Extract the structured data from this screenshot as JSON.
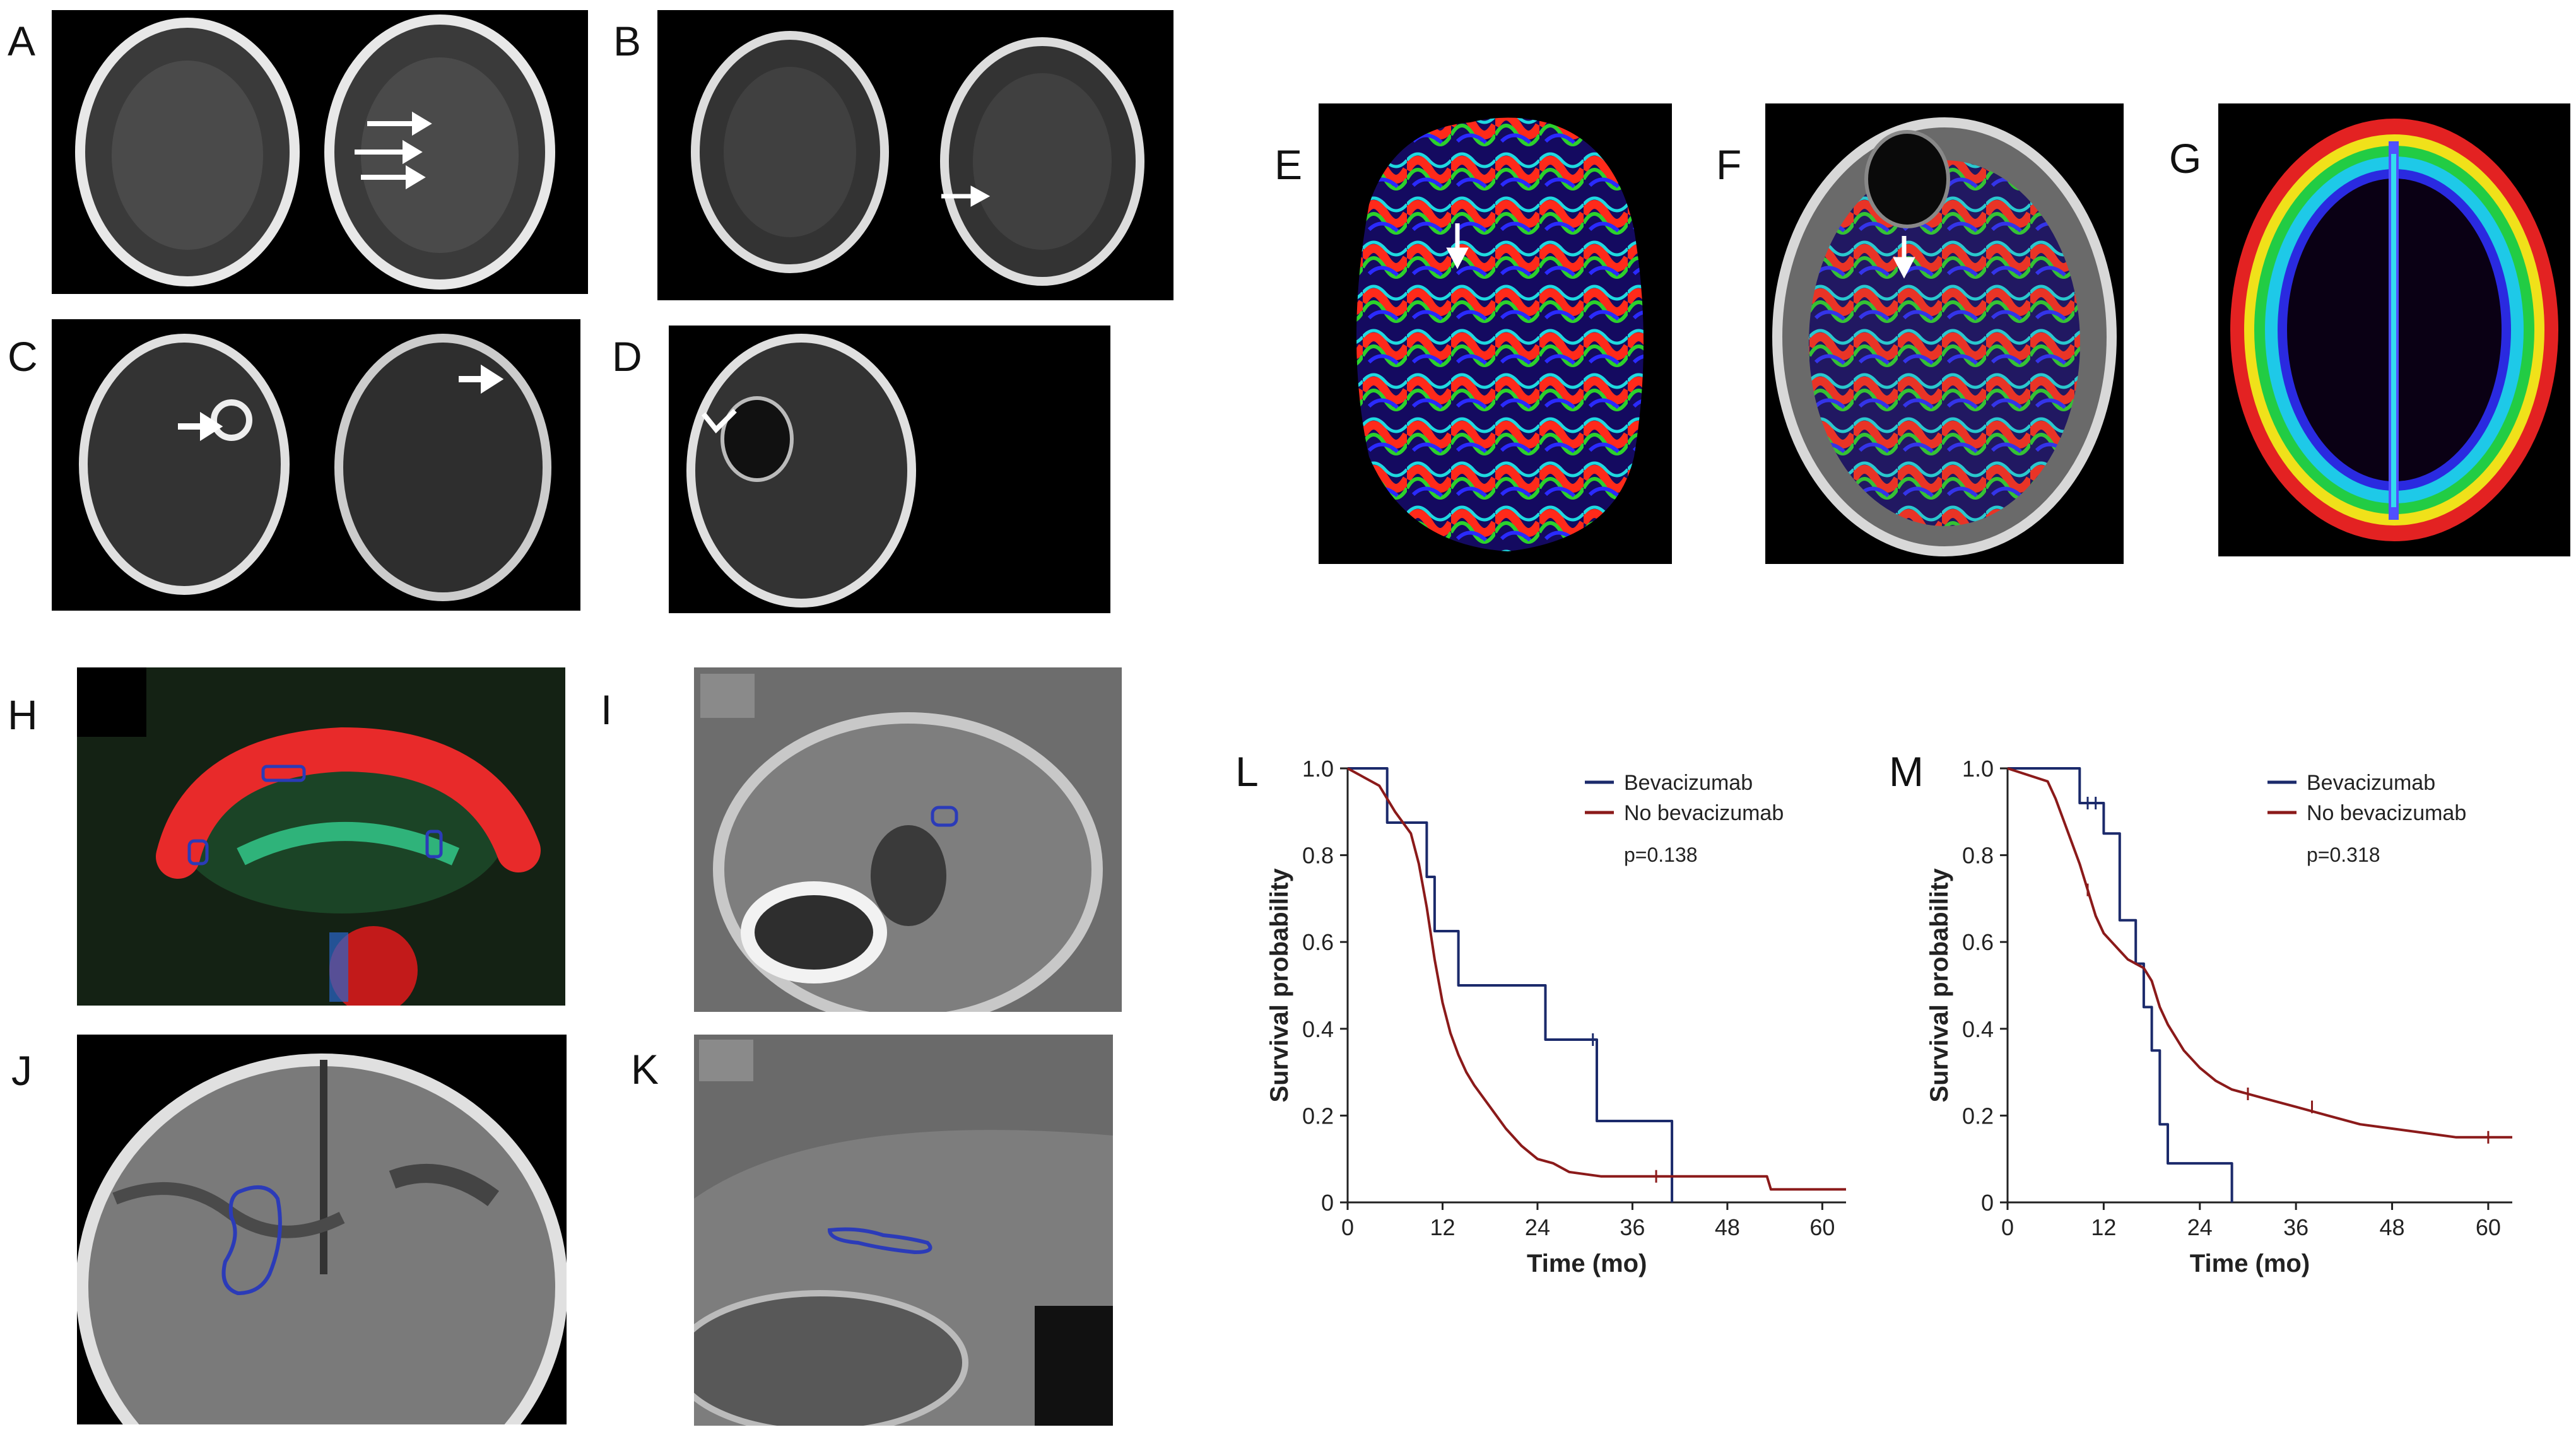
{
  "panel_labels": {
    "A": "A",
    "B": "B",
    "C": "C",
    "D": "D",
    "E": "E",
    "F": "F",
    "G": "G",
    "H": "H",
    "I": "I",
    "J": "J",
    "K": "K",
    "L": "L",
    "M": "M"
  },
  "colors": {
    "bevacizumab": "#1b2a6b",
    "no_bevacizumab": "#8b1a1a",
    "arrow": "#ffffff",
    "roi": "#2b3bb8"
  },
  "icons": [
    "arrow-icon",
    "roi-outline-icon",
    "censor-tick-icon"
  ],
  "chart_data": [
    {
      "id": "L",
      "type": "line",
      "xlabel": "Time (mo)",
      "ylabel": "Survival probability",
      "xlim": [
        0,
        63
      ],
      "ylim": [
        0,
        1.0
      ],
      "xticks": [
        0,
        12,
        24,
        36,
        48,
        60
      ],
      "yticks": [
        0,
        0.2,
        0.4,
        0.6,
        0.8,
        1.0
      ],
      "ytick_labels": [
        "0",
        "0.2",
        "0.4",
        "0.6",
        "0.8",
        "1.0"
      ],
      "legend_position": "top-right",
      "annotation": "p=0.138",
      "series": [
        {
          "name": "Bevacizumab",
          "color": "#1b2a6b",
          "step": true,
          "x": [
            0,
            5,
            5,
            10,
            10,
            11,
            11,
            14,
            14,
            25,
            25,
            31.5,
            31.5,
            41,
            41
          ],
          "y": [
            1,
            1,
            0.875,
            0.875,
            0.75,
            0.75,
            0.625,
            0.625,
            0.5,
            0.5,
            0.375,
            0.375,
            0.1875,
            0.1875,
            0
          ],
          "censor": [
            [
              31,
              0.375
            ]
          ]
        },
        {
          "name": "No bevacizumab",
          "color": "#8b1a1a",
          "step": false,
          "x": [
            0,
            4,
            6,
            8,
            9,
            10,
            11,
            12,
            13,
            14,
            15,
            16,
            18,
            20,
            22,
            24,
            26,
            28,
            32,
            40,
            50,
            53,
            53.5,
            63
          ],
          "y": [
            1,
            0.96,
            0.9,
            0.85,
            0.78,
            0.68,
            0.56,
            0.46,
            0.39,
            0.34,
            0.3,
            0.27,
            0.22,
            0.17,
            0.13,
            0.1,
            0.09,
            0.07,
            0.06,
            0.06,
            0.06,
            0.06,
            0.03,
            0.03
          ],
          "censor": [
            [
              39,
              0.06
            ]
          ]
        }
      ]
    },
    {
      "id": "M",
      "type": "line",
      "xlabel": "Time (mo)",
      "ylabel": "Survival probability",
      "xlim": [
        0,
        63
      ],
      "ylim": [
        0,
        1.0
      ],
      "xticks": [
        0,
        12,
        24,
        36,
        48,
        60
      ],
      "yticks": [
        0,
        0.2,
        0.4,
        0.6,
        0.8,
        1.0
      ],
      "ytick_labels": [
        "0",
        "0.2",
        "0.4",
        "0.6",
        "0.8",
        "1.0"
      ],
      "legend_position": "top-right",
      "annotation": "p=0.318",
      "series": [
        {
          "name": "Bevacizumab",
          "color": "#1b2a6b",
          "step": true,
          "x": [
            0,
            9,
            9,
            12,
            12,
            14,
            14,
            16,
            16,
            17,
            17,
            18,
            18,
            19,
            19,
            20,
            20,
            22,
            22,
            28,
            28
          ],
          "y": [
            1,
            1,
            0.92,
            0.92,
            0.85,
            0.85,
            0.65,
            0.65,
            0.55,
            0.55,
            0.45,
            0.45,
            0.35,
            0.35,
            0.18,
            0.18,
            0.09,
            0.09,
            0.09,
            0.09,
            0
          ],
          "censor": [
            [
              10,
              0.92
            ],
            [
              11,
              0.92
            ]
          ]
        },
        {
          "name": "No bevacizumab",
          "color": "#8b1a1a",
          "step": false,
          "x": [
            0,
            5,
            6,
            7,
            8,
            9,
            10,
            11,
            12,
            13,
            14,
            15,
            16,
            17,
            18,
            19,
            20,
            22,
            24,
            26,
            28,
            30,
            32,
            36,
            40,
            44,
            48,
            52,
            56,
            60,
            63
          ],
          "y": [
            1,
            0.97,
            0.93,
            0.88,
            0.83,
            0.78,
            0.72,
            0.66,
            0.62,
            0.6,
            0.58,
            0.56,
            0.55,
            0.54,
            0.51,
            0.45,
            0.41,
            0.35,
            0.31,
            0.28,
            0.26,
            0.25,
            0.24,
            0.22,
            0.2,
            0.18,
            0.17,
            0.16,
            0.15,
            0.15,
            0.15
          ],
          "censor": [
            [
              10,
              0.72
            ],
            [
              30,
              0.25
            ],
            [
              38,
              0.22
            ],
            [
              60,
              0.15
            ]
          ]
        }
      ]
    }
  ]
}
